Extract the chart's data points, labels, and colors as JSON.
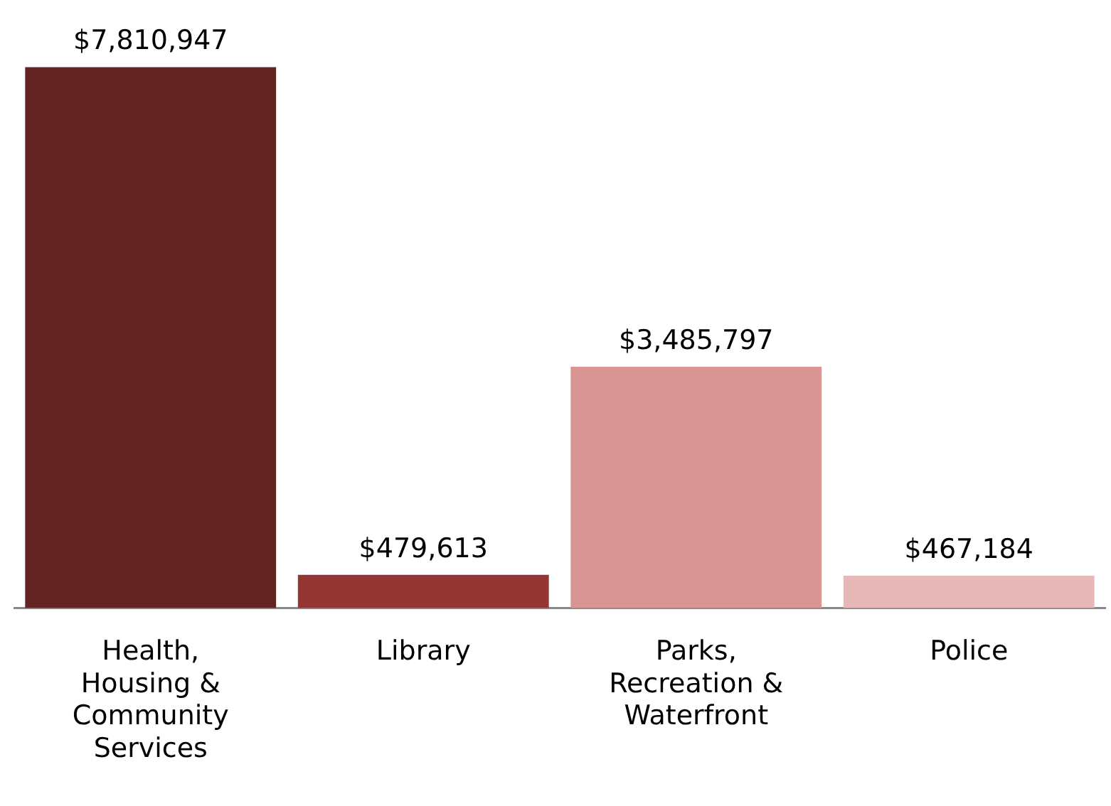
{
  "chart_data": {
    "type": "bar",
    "categories": [
      "Health, Housing & Community Services",
      "Library",
      "Parks, Recreation & Waterfront",
      "Police"
    ],
    "values": [
      7810947,
      479613,
      3485797,
      467184
    ],
    "colors": [
      "#632323",
      "#943634",
      "#d99594",
      "#e6b9b8"
    ],
    "value_labels": [
      "$7,810,947",
      "$479,613",
      "$3,485,797",
      "$467,184"
    ],
    "grid": false,
    "legend": false
  }
}
